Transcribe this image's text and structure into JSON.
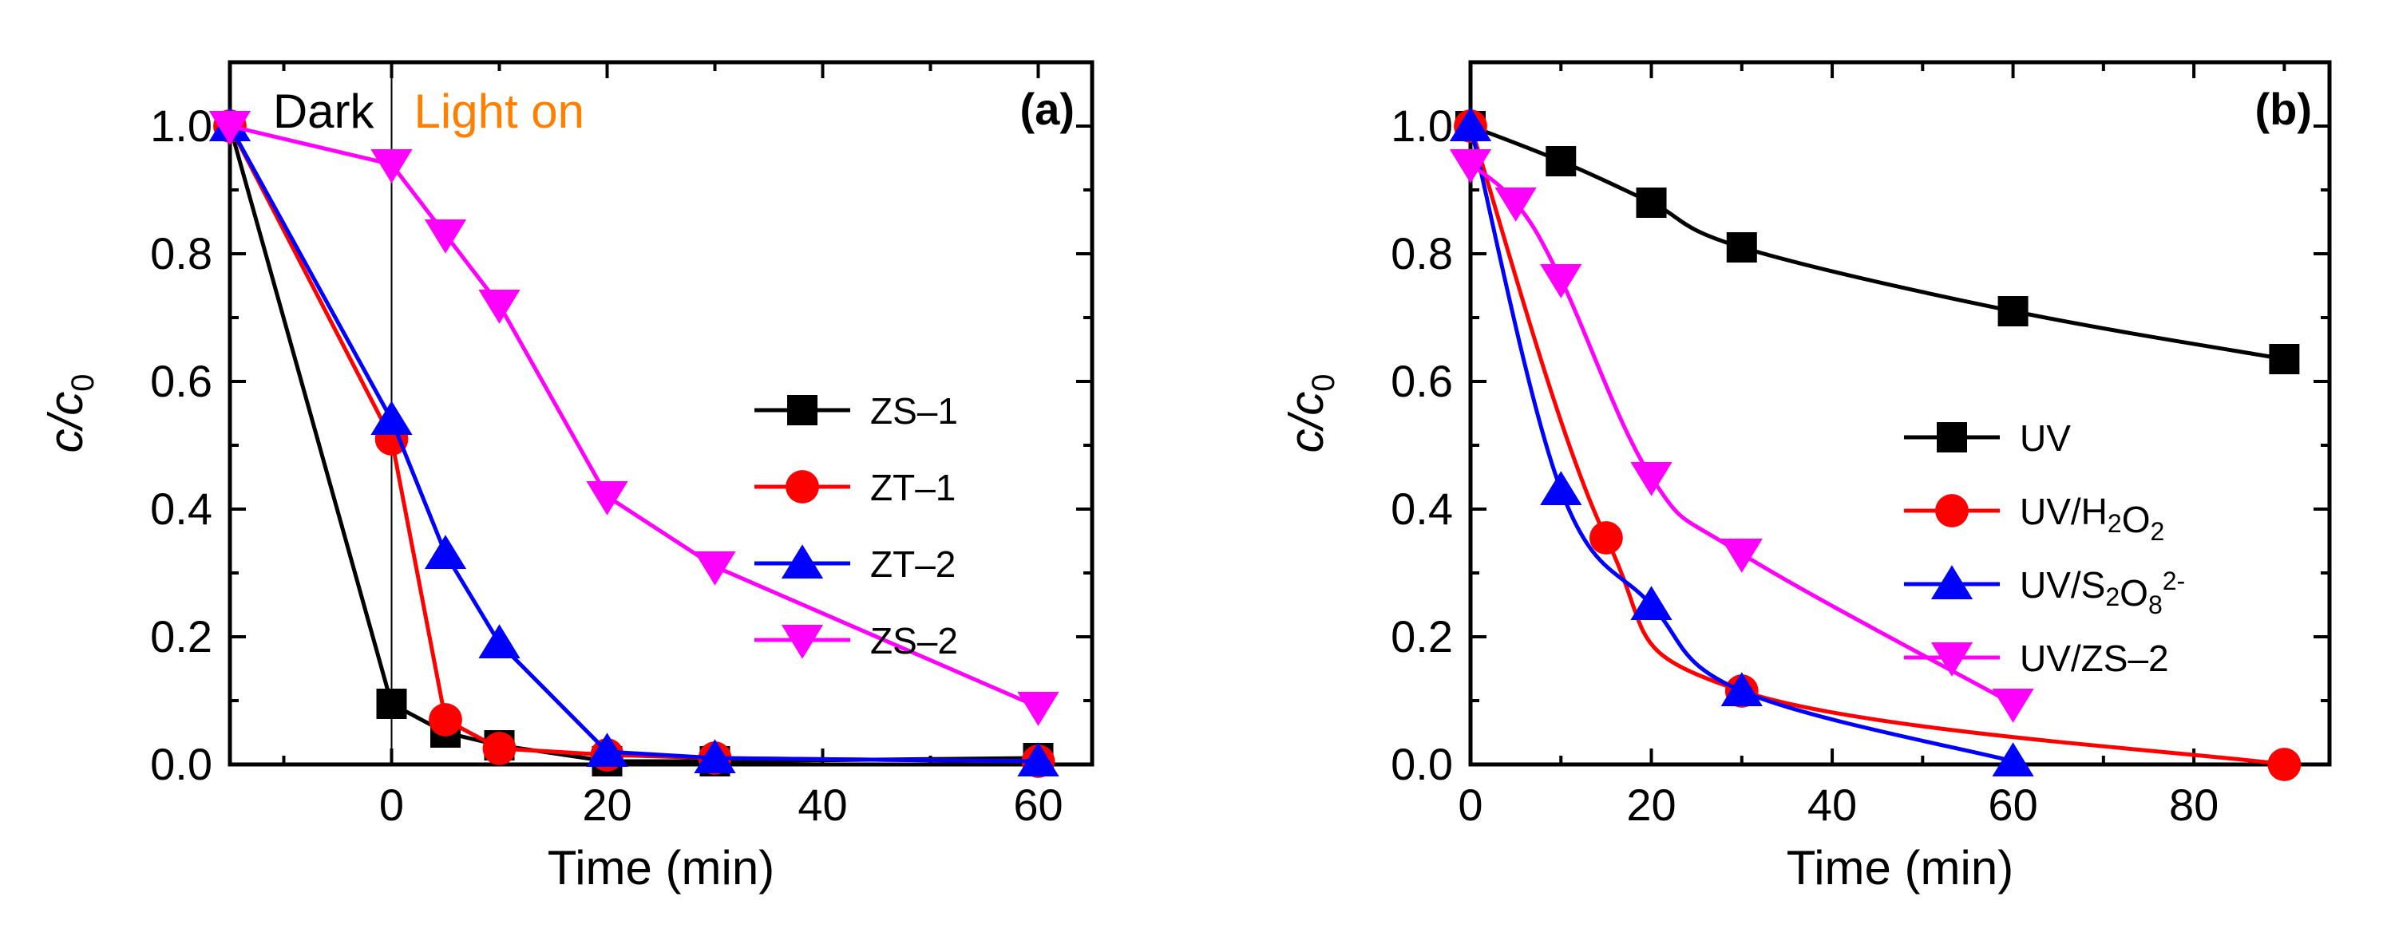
{
  "chart_data": [
    {
      "type": "line",
      "panel_label": "(a)",
      "xlabel": "Time (min)",
      "ylabel": "c/c0",
      "xlim": [
        -15,
        65
      ],
      "ylim": [
        0,
        1.1
      ],
      "xticks": [
        0,
        20,
        40,
        60
      ],
      "yticks": [
        "0.0",
        "0.2",
        "0.4",
        "0.6",
        "0.8",
        "1.0"
      ],
      "annotations": [
        {
          "text": "Dark",
          "color": "#000000"
        },
        {
          "text": "Light on",
          "color": "#FF8000"
        }
      ],
      "vertical_line_x": 0,
      "legend_position": "center-right",
      "series": [
        {
          "name": "ZS–1",
          "color": "#000000",
          "marker": "square",
          "x": [
            -15,
            0,
            5,
            10,
            20,
            30,
            60
          ],
          "y": [
            1.0,
            0.095,
            0.05,
            0.03,
            0.005,
            0.005,
            0.01
          ]
        },
        {
          "name": "ZT–1",
          "color": "#FF0000",
          "marker": "circle",
          "x": [
            -15,
            0,
            5,
            10,
            20,
            30,
            60
          ],
          "y": [
            1.0,
            0.51,
            0.07,
            0.025,
            0.015,
            0.01,
            0.005
          ]
        },
        {
          "name": "ZT–2",
          "color": "#0000FF",
          "marker": "triangle-up",
          "x": [
            -15,
            0,
            5,
            10,
            20,
            30,
            60
          ],
          "y": [
            1.0,
            0.54,
            0.33,
            0.19,
            0.02,
            0.01,
            0.005
          ]
        },
        {
          "name": "ZS–2",
          "color": "#FF00FF",
          "marker": "triangle-down",
          "x": [
            -15,
            0,
            5,
            10,
            20,
            30,
            60
          ],
          "y": [
            1.0,
            0.94,
            0.83,
            0.72,
            0.42,
            0.31,
            0.09
          ]
        }
      ]
    },
    {
      "type": "line",
      "panel_label": "(b)",
      "xlabel": "Time (min)",
      "ylabel": "c/c0",
      "xlim": [
        0,
        95
      ],
      "ylim": [
        0,
        1.1
      ],
      "xticks": [
        0,
        20,
        40,
        60,
        80
      ],
      "yticks": [
        "0.0",
        "0.2",
        "0.4",
        "0.6",
        "0.8",
        "1.0"
      ],
      "legend_position": "center-right",
      "series": [
        {
          "name": "UV",
          "name_parts": [
            [
              "UV",
              ""
            ]
          ],
          "color": "#000000",
          "marker": "square",
          "x": [
            0,
            10,
            20,
            30,
            60,
            90
          ],
          "y": [
            1.0,
            0.945,
            0.88,
            0.81,
            0.71,
            0.635
          ]
        },
        {
          "name": "UV/H2O2",
          "name_parts": [
            [
              "UV/H",
              ""
            ],
            [
              "2",
              "sub"
            ],
            [
              "O",
              ""
            ],
            [
              "2",
              "sub"
            ]
          ],
          "color": "#FF0000",
          "marker": "circle",
          "x": [
            0,
            15,
            30,
            90
          ],
          "y": [
            1.0,
            0.355,
            0.115,
            0.0
          ]
        },
        {
          "name": "UV/S2O82-",
          "name_parts": [
            [
              "UV/S",
              ""
            ],
            [
              "2",
              "sub"
            ],
            [
              "O",
              ""
            ],
            [
              "8",
              "sub"
            ],
            [
              "2-",
              "sup"
            ]
          ],
          "color": "#0000FF",
          "marker": "triangle-up",
          "x": [
            0,
            10,
            20,
            30,
            60
          ],
          "y": [
            1.0,
            0.43,
            0.25,
            0.115,
            0.005
          ]
        },
        {
          "name": "UV/ZS–2",
          "name_parts": [
            [
              "UV/ZS–2",
              ""
            ]
          ],
          "color": "#FF00FF",
          "marker": "triangle-down",
          "x": [
            0,
            5,
            10,
            20,
            30,
            60
          ],
          "y": [
            0.94,
            0.88,
            0.76,
            0.45,
            0.33,
            0.095
          ]
        }
      ]
    }
  ]
}
